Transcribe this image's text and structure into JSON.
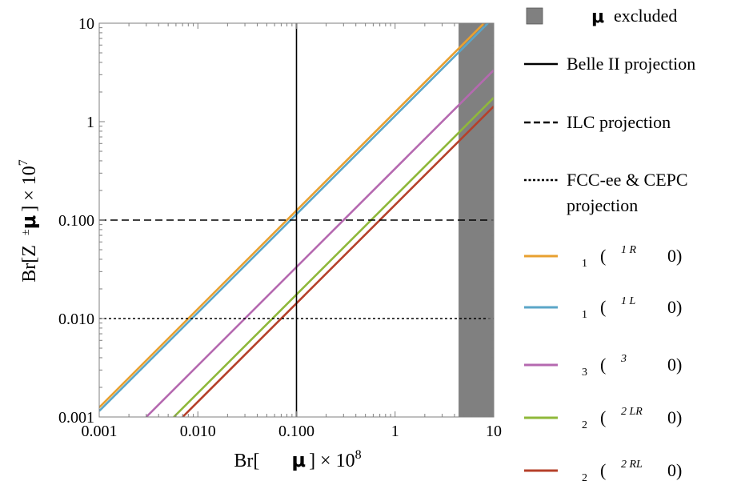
{
  "chart_data": {
    "type": "line",
    "xscale": "log",
    "yscale": "log",
    "xlim": [
      0.001,
      10
    ],
    "ylim": [
      0.001,
      10
    ],
    "x_ticks": [
      "0.001",
      "0.010",
      "0.100",
      "1",
      "10"
    ],
    "y_ticks": [
      "0.001",
      "0.010",
      "0.100",
      "1",
      "10"
    ],
    "xlabel": {
      "prefix": "Br[",
      "mu": "μ",
      "suffix": "] × 10",
      "exponent": "8"
    },
    "ylabel": {
      "prefix": "Br[Z",
      "pm": "±",
      "mu": "μ",
      "suffix": "] × 10",
      "exponent": "7"
    },
    "excluded_region": {
      "x_from": 4.4,
      "x_to": 10,
      "color": "#808080"
    },
    "reference_lines": [
      {
        "orientation": "vertical",
        "value": 0.1,
        "style": "solid",
        "color": "#000000"
      },
      {
        "orientation": "horizontal",
        "value": 0.1,
        "style": "dashed",
        "color": "#000000"
      },
      {
        "orientation": "horizontal",
        "value": 0.01,
        "style": "dotted",
        "color": "#000000"
      }
    ],
    "series": [
      {
        "color": "#E8A030",
        "x": [
          0.001,
          8.3
        ],
        "y": [
          0.00125,
          10.4
        ]
      },
      {
        "color": "#5BA6C8",
        "x": [
          0.001,
          8.8
        ],
        "y": [
          0.00115,
          10.1
        ]
      },
      {
        "color": "#B569B0",
        "x": [
          0.003,
          10
        ],
        "y": [
          0.001,
          3.33
        ]
      },
      {
        "color": "#8FB83A",
        "x": [
          0.0057,
          10
        ],
        "y": [
          0.001,
          1.75
        ]
      },
      {
        "color": "#B5402A",
        "x": [
          0.007,
          10
        ],
        "y": [
          0.001,
          1.43
        ]
      }
    ],
    "legend": {
      "placement": "right",
      "items": [
        {
          "marker": "box",
          "color": "#808080",
          "mu": "μ",
          "text": "excluded"
        },
        {
          "marker": "solid",
          "color": "#000000",
          "lines": [
            "Belle II projection"
          ]
        },
        {
          "marker": "dashed",
          "color": "#000000",
          "lines": [
            "ILC projection"
          ]
        },
        {
          "marker": "dotted",
          "color": "#000000",
          "lines": [
            "FCC-ee & CEPC",
            "projection"
          ]
        },
        {
          "marker": "solid",
          "color": "#E8A030",
          "sub": "1",
          "open": "(",
          "sup": "1 R",
          "close": "0)"
        },
        {
          "marker": "solid",
          "color": "#5BA6C8",
          "sub": "1",
          "open": "(",
          "sup": "1 L",
          "close": "0)"
        },
        {
          "marker": "solid",
          "color": "#B569B0",
          "sub": "3",
          "open": "(",
          "sup": "3",
          "close": "0)"
        },
        {
          "marker": "solid",
          "color": "#8FB83A",
          "sub": "2",
          "open": "(",
          "sup": "2 LR",
          "close": "0)"
        },
        {
          "marker": "solid",
          "color": "#B5402A",
          "sub": "2",
          "open": "(",
          "sup": "2 RL",
          "close": "0)"
        }
      ]
    }
  }
}
